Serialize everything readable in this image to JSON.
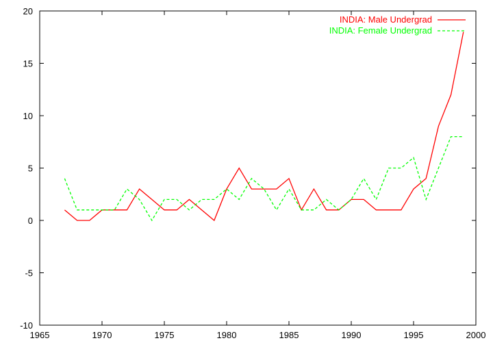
{
  "chart_data": {
    "type": "line",
    "title": "",
    "xlabel": "",
    "ylabel": "",
    "xlim": [
      1965,
      2000
    ],
    "ylim": [
      -10,
      20
    ],
    "x_ticks": [
      1965,
      1970,
      1975,
      1980,
      1985,
      1990,
      1995,
      2000
    ],
    "y_ticks": [
      -10,
      -5,
      0,
      5,
      10,
      15,
      20
    ],
    "grid": false,
    "legend_position": "top-right",
    "x": [
      1967,
      1968,
      1969,
      1970,
      1971,
      1972,
      1973,
      1974,
      1975,
      1976,
      1977,
      1978,
      1979,
      1980,
      1981,
      1982,
      1983,
      1984,
      1985,
      1986,
      1987,
      1988,
      1989,
      1990,
      1991,
      1992,
      1993,
      1994,
      1995,
      1996,
      1997,
      1998,
      1999
    ],
    "series": [
      {
        "name": "INDIA: Male Undergrad",
        "color": "#ff0000",
        "dash": "solid",
        "values": [
          1,
          0,
          0,
          1,
          1,
          1,
          3,
          2,
          1,
          1,
          2,
          1,
          0,
          3,
          5,
          3,
          3,
          3,
          4,
          1,
          3,
          1,
          1,
          2,
          2,
          1,
          1,
          1,
          3,
          4,
          9,
          12,
          18
        ]
      },
      {
        "name": "INDIA: Female Undergrad",
        "color": "#00ff00",
        "dash": "dashed",
        "values": [
          4,
          1,
          1,
          1,
          1,
          3,
          2,
          0,
          2,
          2,
          1,
          2,
          2,
          3,
          2,
          4,
          3,
          1,
          3,
          1,
          1,
          2,
          1,
          2,
          4,
          2,
          5,
          5,
          6,
          2,
          5,
          8,
          8
        ]
      }
    ]
  }
}
